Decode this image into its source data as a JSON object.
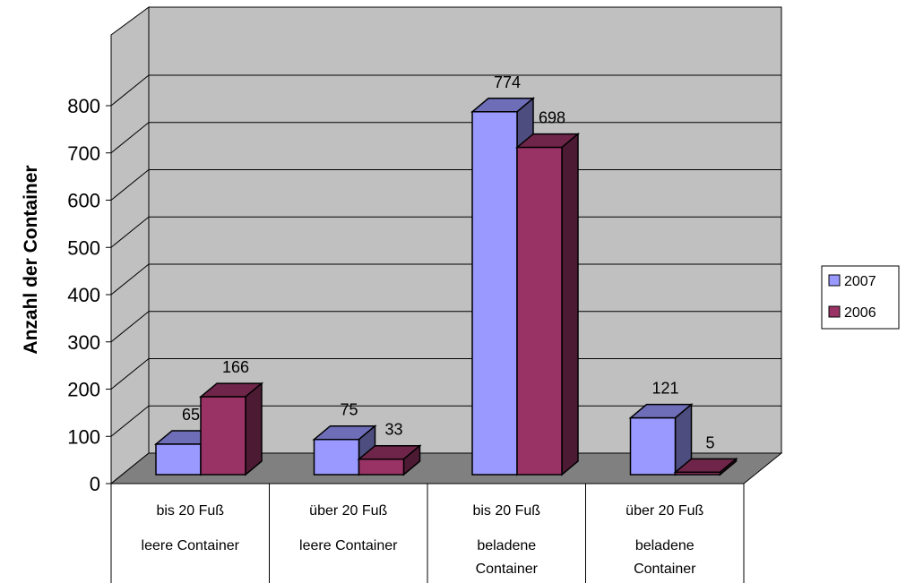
{
  "chart_data": {
    "type": "bar",
    "style": "3d-clustered-column",
    "ylabel": "Anzahl der Container",
    "ylim": [
      0,
      800
    ],
    "yticks": [
      "0",
      "100",
      "200",
      "300",
      "400",
      "500",
      "600",
      "700",
      "800"
    ],
    "grid": true,
    "legend_position": "right",
    "categories": [
      {
        "line1": "bis 20 Fuß",
        "line2": "leere Container"
      },
      {
        "line1": "über 20 Fuß",
        "line2": "leere Container"
      },
      {
        "line1": "bis 20 Fuß",
        "line2": "beladene",
        "line3": "Container"
      },
      {
        "line1": "über 20 Fuß",
        "line2": "beladene",
        "line3": "Container"
      }
    ],
    "series": [
      {
        "name": "2007",
        "color": "#9999FF",
        "values": [
          65,
          75,
          774,
          121
        ]
      },
      {
        "name": "2006",
        "color": "#993366",
        "values": [
          166,
          33,
          698,
          5
        ]
      }
    ]
  }
}
